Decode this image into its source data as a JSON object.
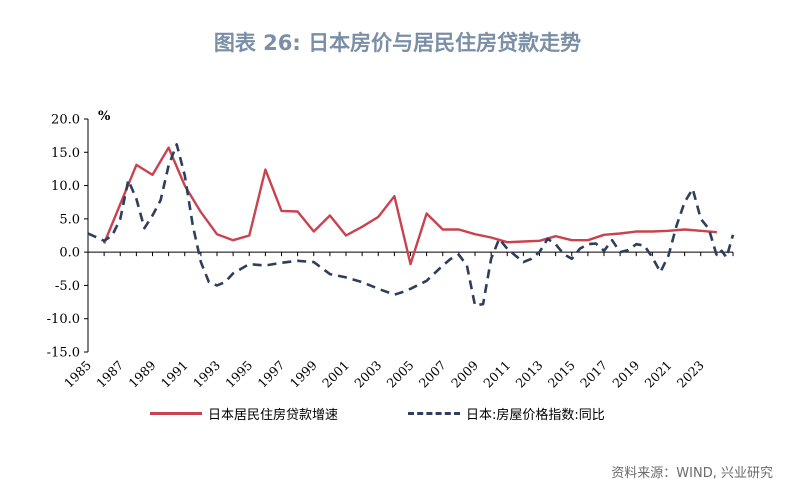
{
  "title": "图表 26: 日本房价与居民住房贷款走势",
  "source": "资料来源：WIND, 兴业研究",
  "chart_data": {
    "type": "line",
    "unit_label": "%",
    "ylim": [
      -15,
      20
    ],
    "y_ticks": [
      "20.0",
      "15.0",
      "10.0",
      "5.0",
      "0.0",
      "-5.0",
      "-10.0",
      "-15.0"
    ],
    "x_ticks": [
      "1985",
      "1987",
      "1989",
      "1991",
      "1993",
      "1995",
      "1997",
      "1999",
      "2001",
      "2003",
      "2005",
      "2007",
      "2009",
      "2011",
      "2013",
      "2015",
      "2017",
      "2019",
      "2021",
      "2023"
    ],
    "grid": false,
    "legend_position": "bottom",
    "series": [
      {
        "name": "日本居民住房贷款增速",
        "color": "#c9434f",
        "style": "solid",
        "points": [
          [
            1986,
            1.3
          ],
          [
            1988,
            13.1
          ],
          [
            1989,
            11.6
          ],
          [
            1990,
            15.7
          ],
          [
            1991,
            10.0
          ],
          [
            1992,
            6.0
          ],
          [
            1993,
            2.7
          ],
          [
            1994,
            1.8
          ],
          [
            1995,
            2.5
          ],
          [
            1996,
            12.4
          ],
          [
            1997,
            6.2
          ],
          [
            1998,
            6.1
          ],
          [
            1999,
            3.1
          ],
          [
            2000,
            5.5
          ],
          [
            2001,
            2.5
          ],
          [
            2002,
            3.8
          ],
          [
            2003,
            5.3
          ],
          [
            2004,
            8.4
          ],
          [
            2005,
            -1.8
          ],
          [
            2006,
            5.8
          ],
          [
            2007,
            3.4
          ],
          [
            2008,
            3.4
          ],
          [
            2009,
            2.7
          ],
          [
            2010,
            2.2
          ],
          [
            2011,
            1.5
          ],
          [
            2012,
            1.6
          ],
          [
            2013,
            1.7
          ],
          [
            2014,
            2.4
          ],
          [
            2015,
            1.8
          ],
          [
            2016,
            1.8
          ],
          [
            2017,
            2.6
          ],
          [
            2018,
            2.8
          ],
          [
            2019,
            3.1
          ],
          [
            2020,
            3.1
          ],
          [
            2021,
            3.2
          ],
          [
            2022,
            3.4
          ],
          [
            2023,
            3.2
          ],
          [
            2024,
            3.0
          ]
        ]
      },
      {
        "name": "日本:房屋价格指数:同比",
        "color": "#2d3e5e",
        "style": "dashed",
        "points": [
          [
            1985,
            2.8
          ],
          [
            1986,
            1.7
          ],
          [
            1986.5,
            2.5
          ],
          [
            1987,
            5.0
          ],
          [
            1987.5,
            10.8
          ],
          [
            1988,
            8.0
          ],
          [
            1988.5,
            3.6
          ],
          [
            1989,
            5.5
          ],
          [
            1989.5,
            7.8
          ],
          [
            1990,
            13.0
          ],
          [
            1990.5,
            16.2
          ],
          [
            1991,
            11.5
          ],
          [
            1991.5,
            4.0
          ],
          [
            1992,
            -1.5
          ],
          [
            1992.5,
            -4.5
          ],
          [
            1993,
            -5.0
          ],
          [
            1993.5,
            -4.5
          ],
          [
            1994,
            -3.2
          ],
          [
            1994.5,
            -2.5
          ],
          [
            1995,
            -1.8
          ],
          [
            1996,
            -2.0
          ],
          [
            1997,
            -1.6
          ],
          [
            1998,
            -1.3
          ],
          [
            1999,
            -1.5
          ],
          [
            2000,
            -3.3
          ],
          [
            2001,
            -3.8
          ],
          [
            2002,
            -4.5
          ],
          [
            2003,
            -5.5
          ],
          [
            2004,
            -6.4
          ],
          [
            2004.5,
            -6.0
          ],
          [
            2005,
            -5.5
          ],
          [
            2006,
            -4.3
          ],
          [
            2007,
            -2.0
          ],
          [
            2007.5,
            -1.0
          ],
          [
            2008,
            -0.4
          ],
          [
            2008.5,
            -2.0
          ],
          [
            2009,
            -8.0
          ],
          [
            2009.5,
            -7.8
          ],
          [
            2010,
            -1.0
          ],
          [
            2010.5,
            2.0
          ],
          [
            2011,
            0.5
          ],
          [
            2011.5,
            -0.5
          ],
          [
            2012,
            -1.5
          ],
          [
            2012.5,
            -1.0
          ],
          [
            2013,
            0.0
          ],
          [
            2013.5,
            2.0
          ],
          [
            2014,
            1.2
          ],
          [
            2014.5,
            -0.3
          ],
          [
            2015,
            -1.0
          ],
          [
            2015.5,
            0.5
          ],
          [
            2016,
            1.2
          ],
          [
            2016.5,
            1.3
          ],
          [
            2017,
            0.2
          ],
          [
            2017.5,
            1.8
          ],
          [
            2018,
            0.0
          ],
          [
            2018.5,
            0.3
          ],
          [
            2019,
            1.2
          ],
          [
            2019.5,
            1.0
          ],
          [
            2020,
            -0.8
          ],
          [
            2020.5,
            -3.0
          ],
          [
            2021,
            -0.5
          ],
          [
            2021.5,
            4.0
          ],
          [
            2022,
            7.5
          ],
          [
            2022.5,
            9.5
          ],
          [
            2023,
            5.0
          ],
          [
            2023.5,
            3.5
          ],
          [
            2024,
            -0.6
          ],
          [
            2024.3,
            0.2
          ],
          [
            2024.6,
            -0.8
          ],
          [
            2025,
            2.6
          ]
        ]
      }
    ]
  }
}
